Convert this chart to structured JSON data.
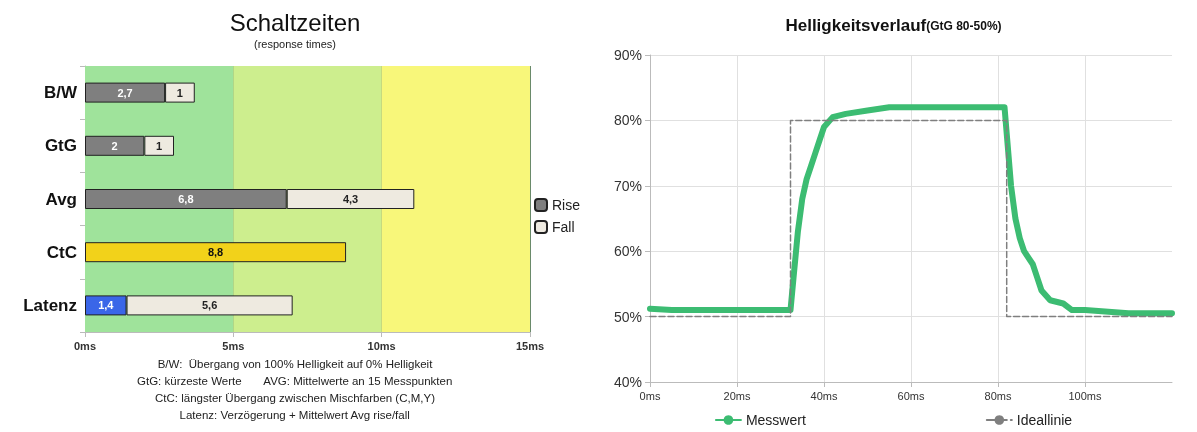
{
  "chart_data": [
    {
      "type": "bar",
      "orientation": "horizontal",
      "stacked": true,
      "title": "Schaltzeiten",
      "subtitle": "(response times)",
      "categories": [
        "B/W",
        "GtG",
        "Avg",
        "CtC",
        "Latenz"
      ],
      "series": [
        {
          "name": "Rise",
          "color": "#7f7f7f",
          "colors": [
            "#7f7f7f",
            "#7f7f7f",
            "#7f7f7f",
            "#f2d21a",
            "#3a66e8"
          ],
          "values": [
            2.7,
            2,
            6.8,
            8.8,
            1.4
          ],
          "value_labels": [
            "2,7",
            "2",
            "6,8",
            "8,8",
            "1,4"
          ]
        },
        {
          "name": "Fall",
          "color": "#eeeae0",
          "values": [
            1,
            1,
            4.3,
            null,
            5.6
          ],
          "value_labels": [
            "1",
            "1",
            "4,3",
            null,
            "5,6"
          ]
        }
      ],
      "xlim": [
        0,
        15
      ],
      "xticks": [
        {
          "value": 0,
          "label": "0ms"
        },
        {
          "value": 5,
          "label": "5ms"
        },
        {
          "value": 10,
          "label": "10ms"
        },
        {
          "value": 15,
          "label": "15ms"
        }
      ],
      "grid": "x",
      "legend": "right",
      "bands": [
        {
          "axis": "x",
          "from": 0,
          "to": 5,
          "color": "#9fe39b"
        },
        {
          "axis": "x",
          "from": 5,
          "to": 10,
          "color": "#cdee8e"
        },
        {
          "axis": "x",
          "from": 10,
          "to": 15,
          "color": "#f8f77a"
        }
      ],
      "annotations": [
        "B/W:  Übergang von 100% Helligkeit auf 0% Helligkeit",
        "GtG: kürzeste Werte       AVG: Mittelwerte an 15 Messpunkten",
        "CtC: längster Übergang zwischen Mischfarben (C,M,Y)",
        "Latenz: Verzögerung + Mittelwert Avg rise/fall"
      ]
    },
    {
      "type": "line",
      "title": "Helligkeitsverlauf",
      "subtitle": "(GtG 80-50%)",
      "series": [
        {
          "name": "Messwert",
          "color": "#3cbc72",
          "x": [
            0,
            5,
            10,
            15,
            20,
            25,
            30,
            32.3,
            33,
            34,
            35,
            36,
            37,
            38,
            39,
            40,
            42,
            45,
            50,
            55,
            60,
            70,
            80,
            81.5,
            82,
            83,
            84,
            85,
            86,
            88,
            89,
            90,
            92,
            95,
            97,
            100,
            110,
            120
          ],
          "values": [
            51.2,
            51,
            51,
            51,
            51,
            51,
            51,
            51,
            56,
            63,
            68,
            71,
            73,
            75,
            77,
            79,
            80.5,
            81,
            81.5,
            82,
            82,
            82,
            82,
            82,
            78,
            70,
            65,
            62,
            60,
            58,
            56,
            54,
            52.5,
            52,
            51,
            51,
            50.5,
            50.5
          ]
        },
        {
          "name": "Ideallinie",
          "color": "#7f7f7f",
          "line_style": "dashed",
          "x": [
            0,
            32.3,
            32.3,
            82,
            82,
            120
          ],
          "values": [
            50,
            50,
            80,
            80,
            50,
            50
          ]
        }
      ],
      "xlim": [
        0,
        120
      ],
      "xticks": [
        {
          "value": 0,
          "label": "0ms"
        },
        {
          "value": 20,
          "label": "20ms"
        },
        {
          "value": 40,
          "label": "40ms"
        },
        {
          "value": 60,
          "label": "60ms"
        },
        {
          "value": 80,
          "label": "80ms"
        },
        {
          "value": 100,
          "label": "100ms"
        }
      ],
      "ylim": [
        40,
        90
      ],
      "yticks": [
        {
          "value": 40,
          "label": "40%"
        },
        {
          "value": 50,
          "label": "50%"
        },
        {
          "value": 60,
          "label": "60%"
        },
        {
          "value": 70,
          "label": "70%"
        },
        {
          "value": 80,
          "label": "80%"
        },
        {
          "value": 90,
          "label": "90%"
        }
      ],
      "grid": true,
      "legend": "bottom"
    }
  ]
}
